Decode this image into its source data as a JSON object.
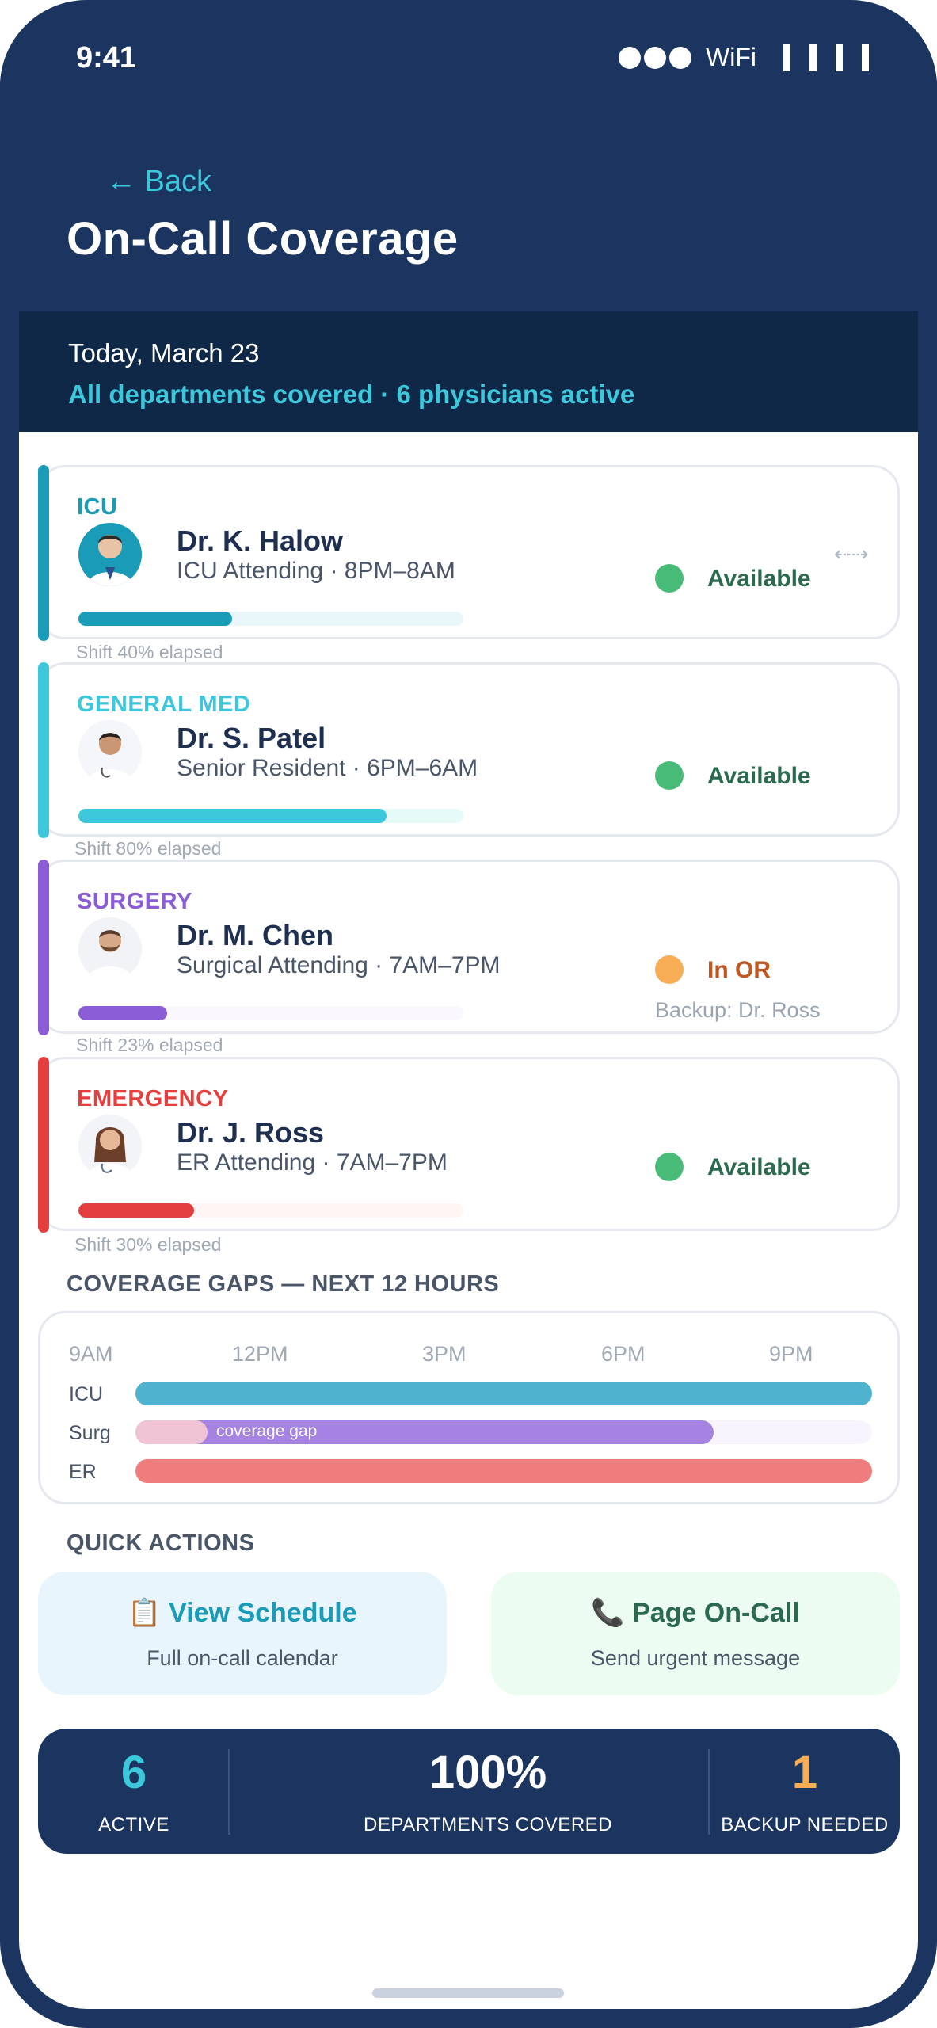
{
  "status_bar": {
    "time": "9:41",
    "wifi_label": "WiFi"
  },
  "header": {
    "back_label": "← Back",
    "title": "On-Call Coverage"
  },
  "summary": {
    "date": "Today, March 23",
    "status": "All departments covered · 6 physicians active"
  },
  "departments": [
    {
      "name": "ICU",
      "color": "#1a9bb8",
      "track_color": "#e9f7fb",
      "doctor": "Dr. K. Halow",
      "role": "ICU Attending · 8PM–8AM",
      "status": "Available",
      "status_color": "#2b6a4e",
      "dot_color": "#48bb78",
      "progress": 0.4,
      "elapsed": "Shift 40% elapsed",
      "backup": ""
    },
    {
      "name": "GENERAL MED",
      "color": "#3cc7db",
      "track_color": "#e6fbf7",
      "doctor": "Dr. S. Patel",
      "role": "Senior Resident · 6PM–6AM",
      "status": "Available",
      "status_color": "#2b6a4e",
      "dot_color": "#48bb78",
      "progress": 0.8,
      "elapsed": "Shift 80% elapsed",
      "backup": ""
    },
    {
      "name": "SURGERY",
      "color": "#8a5cd6",
      "track_color": "#faf7fd",
      "doctor": "Dr. M. Chen",
      "role": "Surgical Attending · 7AM–7PM",
      "status": "In OR",
      "status_color": "#c05621",
      "dot_color": "#f6ad55",
      "progress": 0.23,
      "elapsed": "Shift 23% elapsed",
      "backup": "Backup: Dr. Ross"
    },
    {
      "name": "EMERGENCY",
      "color": "#e53e3e",
      "track_color": "#fff5f5",
      "doctor": "Dr. J. Ross",
      "role": "ER Attending · 7AM–7PM",
      "status": "Available",
      "status_color": "#2b6a4e",
      "dot_color": "#48bb78",
      "progress": 0.3,
      "elapsed": "Shift 30% elapsed",
      "backup": ""
    }
  ],
  "coverage_gaps": {
    "heading": "COVERAGE GAPS — NEXT 12 HOURS",
    "ticks": [
      "9AM",
      "12PM",
      "3PM",
      "6PM",
      "9PM"
    ],
    "rows": [
      {
        "label": "ICU",
        "color": "#4fb3cf",
        "track": "#eef8fb",
        "covered_start": 0.0,
        "covered_end": 1.0,
        "gap_start": null,
        "gap_end": null
      },
      {
        "label": "Surg",
        "color": "#a683e3",
        "track": "#f7f4fd",
        "covered_start": 0.0,
        "covered_end": 0.785,
        "gap_start": 0.0,
        "gap_end": 0.098,
        "gap_label": "coverage gap",
        "gap_color": "#f0c4d4"
      },
      {
        "label": "ER",
        "color": "#f07d7d",
        "track": "#fdeeee",
        "covered_start": 0.0,
        "covered_end": 1.0,
        "gap_start": null,
        "gap_end": null
      }
    ]
  },
  "quick_actions": {
    "heading": "QUICK ACTIONS",
    "view_schedule": {
      "icon": "📋",
      "title": "View Schedule",
      "subtitle": "Full on-call calendar"
    },
    "page_on_call": {
      "icon": "📞",
      "title": "Page On-Call",
      "subtitle": "Send urgent message"
    }
  },
  "stats": [
    {
      "value": "6",
      "label": "ACTIVE",
      "color": "#3cc7db"
    },
    {
      "value": "100%",
      "label": "DEPARTMENTS COVERED",
      "color": "#ffffff"
    },
    {
      "value": "1",
      "label": "BACKUP NEEDED",
      "color": "#f6ad55"
    }
  ]
}
